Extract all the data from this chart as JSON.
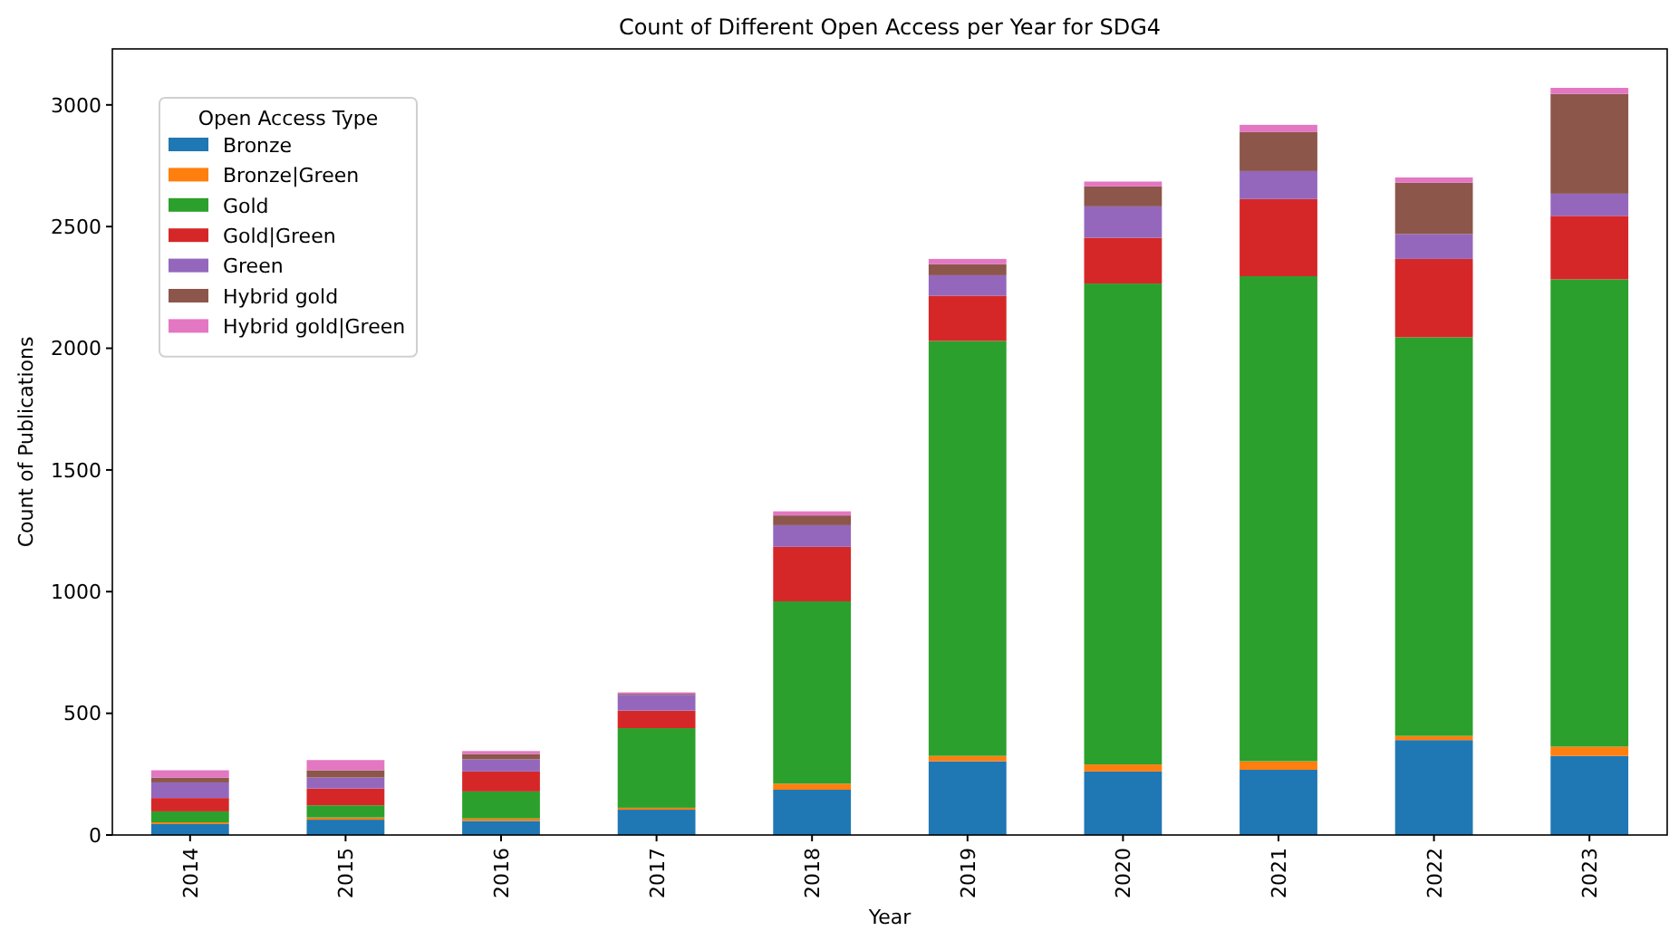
{
  "chart_data": {
    "type": "bar",
    "stacked": true,
    "title": "Count of Different Open Access per Year for SDG4",
    "xlabel": "Year",
    "ylabel": "Count of Publications",
    "legend_title": "Open Access Type",
    "legend": "top left",
    "categories": [
      "2014",
      "2015",
      "2016",
      "2017",
      "2018",
      "2019",
      "2020",
      "2021",
      "2022",
      "2023"
    ],
    "ylim": [
      0,
      3230
    ],
    "yticks": [
      0,
      500,
      1000,
      1500,
      2000,
      2500,
      3000
    ],
    "series": [
      {
        "name": "Bronze",
        "color": "#1f77b4",
        "values": [
          45,
          63,
          58,
          104,
          186,
          303,
          261,
          268,
          390,
          325
        ]
      },
      {
        "name": "Bronze|Green",
        "color": "#ff7f0e",
        "values": [
          7,
          9,
          10,
          8,
          25,
          22,
          29,
          35,
          17,
          38
        ]
      },
      {
        "name": "Gold",
        "color": "#2ca02c",
        "values": [
          45,
          50,
          111,
          327,
          749,
          1705,
          1976,
          1993,
          1638,
          1920
        ]
      },
      {
        "name": "Gold|Green",
        "color": "#d62728",
        "values": [
          55,
          69,
          82,
          72,
          224,
          186,
          188,
          317,
          322,
          261
        ]
      },
      {
        "name": "Green",
        "color": "#9467bd",
        "values": [
          64,
          45,
          50,
          65,
          89,
          84,
          129,
          115,
          102,
          91
        ]
      },
      {
        "name": "Hybrid gold",
        "color": "#8c564b",
        "values": [
          20,
          30,
          22,
          4,
          40,
          45,
          82,
          160,
          211,
          410
        ]
      },
      {
        "name": "Hybrid gold|Green",
        "color": "#e377c2",
        "values": [
          30,
          42,
          12,
          6,
          17,
          22,
          20,
          30,
          22,
          25
        ]
      }
    ]
  }
}
